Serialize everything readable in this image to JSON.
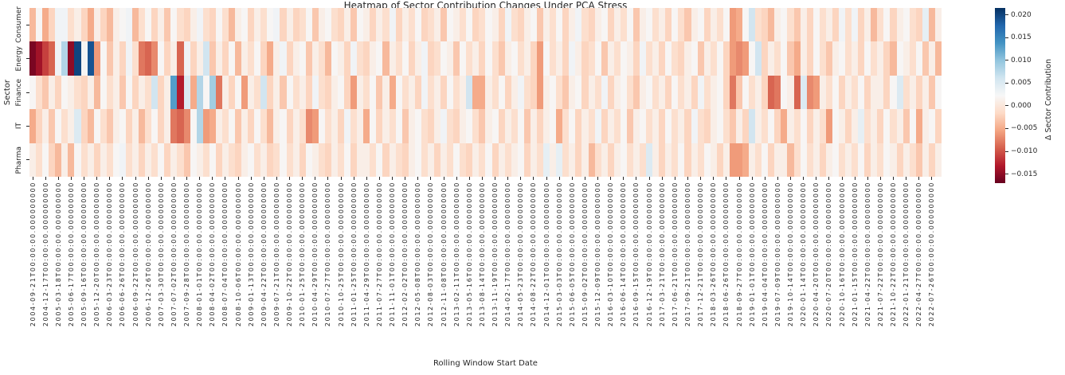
{
  "chart_data": {
    "type": "heatmap",
    "title": "Heatmap of Sector Contribution Changes Under PCA Stress",
    "xlabel": "Rolling Window Start Date",
    "ylabel": "Sector",
    "colorbar_label": "Δ Sector Contribution",
    "legend_position": "right-colorbar",
    "grid": false,
    "rows": [
      "Consumer",
      "Energy",
      "Finance",
      "IT",
      "Pharma"
    ],
    "x_tick_suffix": "T00:00:00.000000000",
    "x_tick_dates": [
      "2004-09-21",
      "2004-12-17",
      "2005-03-18",
      "2005-06-17",
      "2005-09-16",
      "2005-12-20",
      "2006-03-23",
      "2006-06-26",
      "2006-09-22",
      "2006-12-26",
      "2007-03-30",
      "2007-07-02",
      "2007-09-28",
      "2008-01-01",
      "2008-04-02",
      "2008-07-04",
      "2008-10-06",
      "2009-01-13",
      "2009-04-22",
      "2009-07-21",
      "2009-10-22",
      "2010-01-25",
      "2010-04-29",
      "2010-07-27",
      "2010-10-25",
      "2011-01-25",
      "2011-04-29",
      "2011-07-27",
      "2011-11-01",
      "2012-02-02",
      "2012-05-08",
      "2012-08-03",
      "2012-11-08",
      "2013-02-11",
      "2013-05-16",
      "2013-08-14",
      "2013-11-19",
      "2014-02-17",
      "2014-05-23",
      "2014-08-22",
      "2014-12-01",
      "2015-03-03",
      "2015-06-05",
      "2015-09-02",
      "2015-12-09",
      "2016-03-10",
      "2016-06-14",
      "2016-09-15",
      "2016-12-19",
      "2017-03-21",
      "2017-06-21",
      "2017-09-21",
      "2017-12-21",
      "2018-03-26",
      "2018-06-26",
      "2018-09-27",
      "2019-01-01",
      "2019-04-04",
      "2019-07-09",
      "2019-10-14",
      "2020-01-14",
      "2020-04-20",
      "2020-07-20",
      "2020-10-16",
      "2021-01-15",
      "2021-04-22",
      "2021-07-22",
      "2021-10-22",
      "2022-01-21",
      "2022-04-27",
      "2022-07-26"
    ],
    "columns_per_tick": 2,
    "value_scale": 0.001,
    "vmin": -0.017,
    "vmax": 0.0215,
    "colormap": {
      "name": "RdBu",
      "anchors": [
        "#67001f",
        "#b2182b",
        "#d6604d",
        "#f4a582",
        "#fddbc7",
        "#f7f7f7",
        "#d1e5f0",
        "#92c5de",
        "#4393c3",
        "#2166ac",
        "#053061"
      ]
    },
    "colorbar_tick_values": [
      0.02,
      0.015,
      0.01,
      0.005,
      0.0,
      -0.005,
      -0.01,
      -0.015
    ],
    "colorbar_tick_labels": [
      "0.020",
      "0.015",
      "0.010",
      "0.005",
      "0.000",
      "−0.005",
      "−0.010",
      "−0.015"
    ],
    "values_milli": [
      [
        -4,
        2,
        -5,
        -2,
        3,
        3,
        -1,
        1,
        -2,
        -5,
        1,
        -2,
        -4,
        1,
        2,
        3,
        -4,
        -1,
        2,
        -2,
        1,
        -3,
        2,
        -1,
        -2,
        1,
        3,
        -1,
        -2,
        2,
        -1,
        -4,
        1,
        2,
        -2,
        1,
        -1,
        2,
        3,
        -2,
        1,
        -2,
        -1,
        2,
        -3,
        1,
        2,
        -1,
        -2,
        1,
        -3,
        2,
        1,
        -2,
        1,
        -1,
        3,
        -2,
        1,
        -1,
        2,
        -2,
        -1,
        1,
        -3,
        2,
        1,
        -1,
        2,
        -2,
        -1,
        2,
        1,
        -2,
        3,
        -1,
        -2,
        1,
        2,
        -3,
        1,
        -1,
        2,
        -2,
        1,
        3,
        -1,
        -2,
        1,
        2,
        -2,
        1,
        -1,
        2,
        -3,
        1,
        2,
        -1,
        1,
        -2,
        2,
        -1,
        -3,
        1,
        2,
        -2,
        1,
        -1,
        2,
        -6,
        -5,
        2,
        6,
        -1,
        -2,
        -4,
        1,
        2,
        -1,
        -3,
        1,
        -2,
        2,
        -1,
        1,
        -2,
        3,
        -1,
        3,
        -2,
        1,
        -4,
        -1,
        2,
        -2,
        1,
        2,
        -1,
        -2,
        4,
        -4,
        1
      ],
      [
        -16,
        -14,
        -11,
        -9,
        3,
        8,
        -15,
        20,
        2,
        19,
        -6,
        2,
        -3,
        1,
        -2,
        3,
        -1,
        -8,
        -9,
        -7,
        2,
        -2,
        1,
        -9,
        3,
        -2,
        1,
        6,
        -3,
        1,
        -2,
        2,
        -4,
        1,
        -1,
        2,
        -2,
        -5,
        1,
        3,
        -2,
        1,
        2,
        -3,
        1,
        -1,
        -4,
        2,
        1,
        -2,
        3,
        -1,
        -2,
        1,
        2,
        -4,
        1,
        -1,
        2,
        -2,
        1,
        3,
        -2,
        -1,
        2,
        1,
        -3,
        2,
        -1,
        1,
        -2,
        2,
        -1,
        -3,
        1,
        2,
        -1,
        1,
        -2,
        -6,
        2,
        -1,
        1,
        -2,
        3,
        1,
        -2,
        -1,
        2,
        -3,
        1,
        -1,
        2,
        1,
        -2,
        3,
        -1,
        1,
        -2,
        2,
        -1,
        -2,
        1,
        2,
        -3,
        1,
        -1,
        2,
        -2,
        -6,
        -7,
        -6,
        2,
        6,
        -2,
        1,
        -1,
        2,
        -3,
        -5,
        1,
        -2,
        2,
        -1,
        -3,
        1,
        2,
        -1,
        1,
        -2,
        2,
        -1,
        1,
        -2,
        -4,
        2,
        1,
        -1,
        2,
        -3,
        1,
        -4
      ],
      [
        2,
        -1,
        -3,
        1,
        -2,
        2,
        1,
        -1,
        -2,
        1,
        -4,
        2,
        -1,
        1,
        -3,
        2,
        -2,
        1,
        -1,
        6,
        -2,
        1,
        13,
        -13,
        5,
        -5,
        8,
        2,
        9,
        -8,
        1,
        -2,
        2,
        -6,
        1,
        -1,
        6,
        -2,
        1,
        -3,
        2,
        -1,
        1,
        -2,
        3,
        -1,
        -2,
        1,
        2,
        -2,
        -6,
        1,
        -1,
        2,
        -3,
        1,
        -5,
        2,
        -1,
        1,
        -2,
        3,
        -1,
        1,
        -2,
        2,
        -1,
        1,
        6,
        -5,
        -5,
        1,
        -1,
        2,
        -2,
        1,
        3,
        -1,
        -2,
        -6,
        1,
        2,
        -1,
        -3,
        1,
        2,
        -2,
        1,
        -1,
        3,
        -2,
        1,
        2,
        -1,
        -3,
        1,
        2,
        -1,
        1,
        -2,
        2,
        -1,
        1,
        -2,
        3,
        -1,
        1,
        2,
        -2,
        -8,
        -3,
        2,
        -1,
        1,
        -2,
        -9,
        -8,
        2,
        1,
        -9,
        5,
        -7,
        -6,
        1,
        -1,
        2,
        -2,
        1,
        -1,
        2,
        -2,
        1,
        1,
        -2,
        2,
        5,
        -1,
        1,
        -2,
        1,
        -3,
        2
      ],
      [
        -5,
        -2,
        1,
        -3,
        2,
        -1,
        1,
        5,
        -2,
        -4,
        2,
        -1,
        -3,
        1,
        2,
        -2,
        1,
        -4,
        -1,
        2,
        -2,
        1,
        -8,
        -9,
        -7,
        2,
        8,
        -6,
        -5,
        1,
        -1,
        2,
        -3,
        1,
        -2,
        2,
        -1,
        -4,
        1,
        2,
        -2,
        1,
        -1,
        -7,
        -6,
        2,
        -1,
        1,
        -2,
        3,
        -1,
        1,
        -5,
        2,
        -2,
        1,
        -1,
        2,
        -3,
        1,
        2,
        -1,
        -2,
        1,
        3,
        -1,
        -2,
        1,
        2,
        -1,
        -3,
        1,
        2,
        -2,
        1,
        -1,
        2,
        -3,
        1,
        -2,
        1,
        2,
        -5,
        -1,
        2,
        -2,
        1,
        -1,
        3,
        -2,
        1,
        -1,
        2,
        -3,
        1,
        2,
        -1,
        1,
        -2,
        2,
        -1,
        1,
        -2,
        3,
        -1,
        -2,
        1,
        2,
        -1,
        -3,
        1,
        -2,
        6,
        1,
        -1,
        2,
        -2,
        -5,
        1,
        -1,
        2,
        -2,
        1,
        -1,
        -6,
        2,
        1,
        -2,
        1,
        4,
        -1,
        1,
        -2,
        2,
        -1,
        1,
        -3,
        2,
        -5,
        1,
        2,
        -2
      ],
      [
        1,
        -1,
        2,
        -2,
        -4,
        1,
        -4,
        2,
        -1,
        1,
        -2,
        1,
        -1,
        2,
        3,
        -1,
        1,
        -2,
        1,
        -1,
        2,
        -2,
        1,
        -1,
        -3,
        2,
        1,
        -1,
        2,
        -2,
        1,
        -1,
        -2,
        1,
        2,
        -1,
        1,
        -2,
        -1,
        2,
        -1,
        1,
        -2,
        2,
        1,
        -1,
        -2,
        1,
        -1,
        2,
        -2,
        1,
        1,
        -1,
        2,
        -2,
        1,
        -1,
        -2,
        1,
        2,
        -1,
        1,
        -2,
        1,
        -1,
        2,
        -1,
        -2,
        1,
        -1,
        2,
        -2,
        1,
        -1,
        1,
        2,
        -2,
        1,
        -1,
        4,
        1,
        4,
        -1,
        1,
        -2,
        1,
        -4,
        -1,
        1,
        -2,
        1,
        2,
        -1,
        1,
        -1,
        5,
        1,
        -2,
        1,
        -1,
        2,
        -2,
        1,
        -1,
        2,
        1,
        -2,
        1,
        -6,
        -6,
        -5,
        1,
        -1,
        2,
        -2,
        1,
        1,
        -4,
        -1,
        2,
        -1,
        1,
        -2,
        1,
        2,
        -1,
        1,
        -1,
        2,
        -2,
        1,
        -1,
        2,
        1,
        -2,
        1,
        -1,
        -3,
        1,
        -2,
        1
      ]
    ]
  }
}
